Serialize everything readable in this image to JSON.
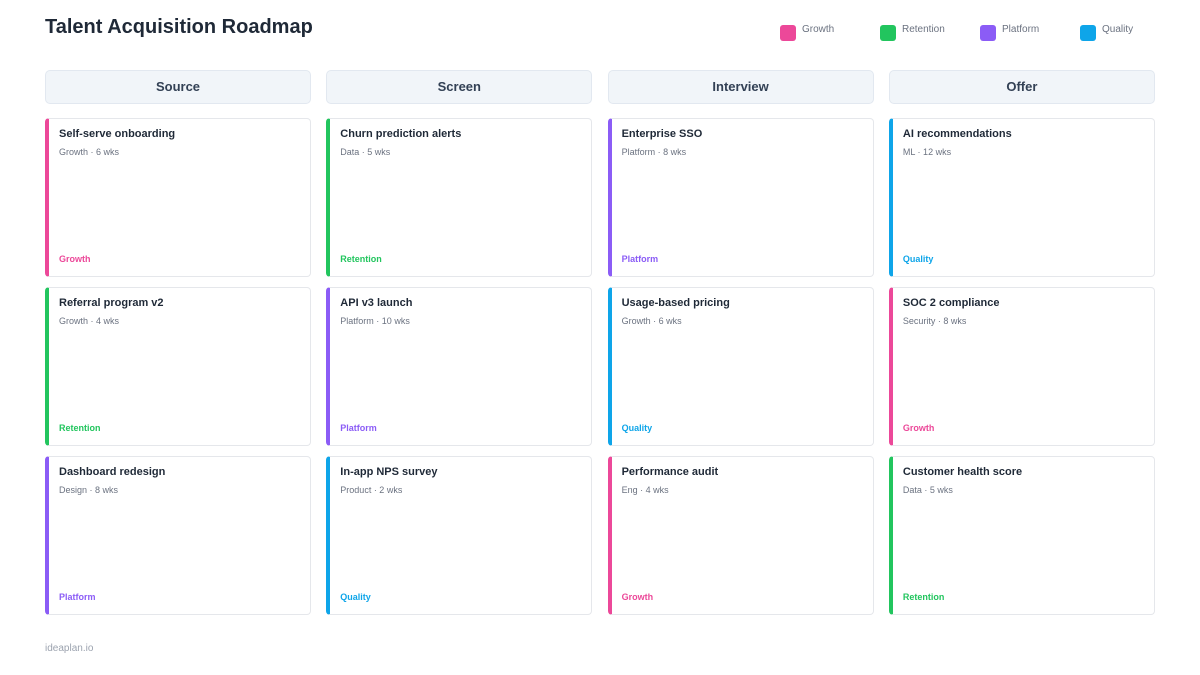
{
  "header": {
    "title": "Talent Acquisition Roadmap"
  },
  "legend": [
    {
      "name": "Growth",
      "color": "#ec4899"
    },
    {
      "name": "Retention",
      "color": "#22c55e"
    },
    {
      "name": "Platform",
      "color": "#8b5cf6"
    },
    {
      "name": "Quality",
      "color": "#0ea5e9"
    }
  ],
  "columns": [
    {
      "title": "Source",
      "cards": [
        {
          "title": "Self-serve onboarding",
          "meta": "Growth · 6 wks",
          "tag": "Growth"
        },
        {
          "title": "Referral program v2",
          "meta": "Growth · 4 wks",
          "tag": "Retention"
        },
        {
          "title": "Dashboard redesign",
          "meta": "Design · 8 wks",
          "tag": "Platform"
        }
      ]
    },
    {
      "title": "Screen",
      "cards": [
        {
          "title": "Churn prediction alerts",
          "meta": "Data · 5 wks",
          "tag": "Retention"
        },
        {
          "title": "API v3 launch",
          "meta": "Platform · 10 wks",
          "tag": "Platform"
        },
        {
          "title": "In-app NPS survey",
          "meta": "Product · 2 wks",
          "tag": "Quality"
        }
      ]
    },
    {
      "title": "Interview",
      "cards": [
        {
          "title": "Enterprise SSO",
          "meta": "Platform · 8 wks",
          "tag": "Platform"
        },
        {
          "title": "Usage-based pricing",
          "meta": "Growth · 6 wks",
          "tag": "Quality"
        },
        {
          "title": "Performance audit",
          "meta": "Eng · 4 wks",
          "tag": "Growth"
        }
      ]
    },
    {
      "title": "Offer",
      "cards": [
        {
          "title": "AI recommendations",
          "meta": "ML · 12 wks",
          "tag": "Quality"
        },
        {
          "title": "SOC 2 compliance",
          "meta": "Security · 8 wks",
          "tag": "Growth"
        },
        {
          "title": "Customer health score",
          "meta": "Data · 5 wks",
          "tag": "Retention"
        }
      ]
    }
  ],
  "footer": {
    "text": "ideaplan.io"
  }
}
